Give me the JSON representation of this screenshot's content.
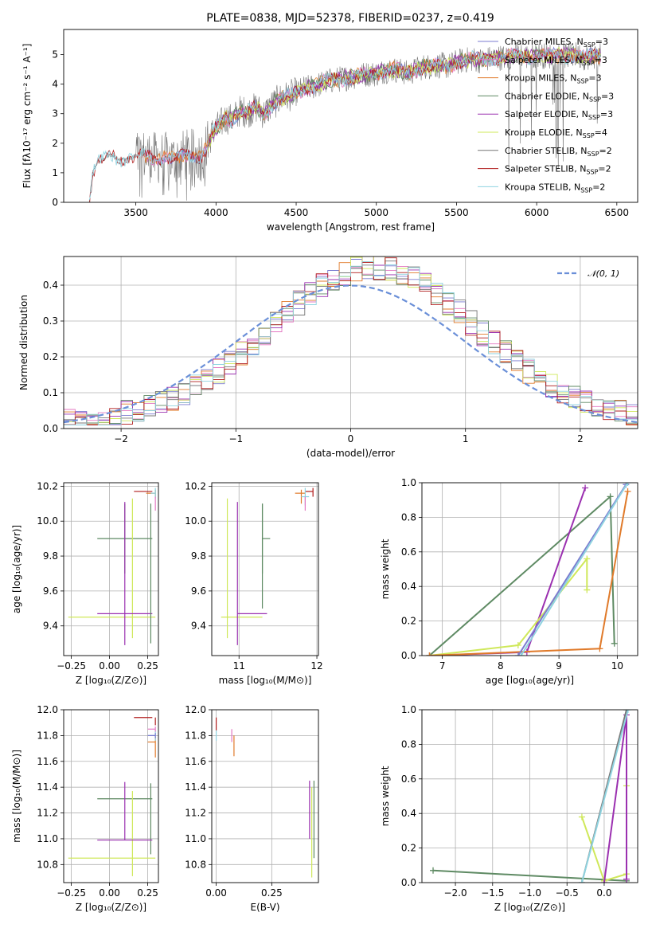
{
  "palette": {
    "Chabrier MILES": "#7b7bd0",
    "Salpeter MILES": "#e377c2",
    "Kroupa MILES": "#e07a2a",
    "Chabrier ELODIE": "#5e8a63",
    "Salpeter ELODIE": "#9b30b0",
    "Kroupa ELODIE": "#cfe85a",
    "Chabrier STELIB": "#777777",
    "Salpeter STELIB": "#b01c1c",
    "Kroupa STELIB": "#8fd3e0"
  },
  "chart_data": [
    {
      "id": "spectrum",
      "type": "line",
      "title": "PLATE=0838, MJD=52378, FIBERID=0237, z=0.419",
      "xlabel": "wavelength [Angstrom, rest frame]",
      "ylabel": "Flux [fλ10⁻¹⁷ erg cm⁻² s⁻¹ A⁻¹]",
      "xlim": [
        3050,
        6630
      ],
      "ylim": [
        0,
        5.85
      ],
      "xticks": [
        3500,
        4000,
        4500,
        5000,
        5500,
        6000,
        6500
      ],
      "yticks": [
        0,
        1,
        2,
        3,
        4,
        5
      ],
      "legend_position": "top-right",
      "legend": [
        {
          "name": "Chabrier MILES",
          "label": "Chabrier MILES, N",
          "sub": "SSP",
          "n": "=3"
        },
        {
          "name": "Salpeter MILES",
          "label": "Salpeter MILES, N",
          "sub": "SSP",
          "n": "=3"
        },
        {
          "name": "Kroupa MILES",
          "label": "Kroupa MILES, N",
          "sub": "SSP",
          "n": "=3"
        },
        {
          "name": "Chabrier ELODIE",
          "label": "Chabrier ELODIE, N",
          "sub": "SSP",
          "n": "=3"
        },
        {
          "name": "Salpeter ELODIE",
          "label": "Salpeter ELODIE, N",
          "sub": "SSP",
          "n": "=3"
        },
        {
          "name": "Kroupa ELODIE",
          "label": "Kroupa ELODIE, N",
          "sub": "SSP",
          "n": "=4"
        },
        {
          "name": "Chabrier STELIB",
          "label": "Chabrier STELIB, N",
          "sub": "SSP",
          "n": "=2"
        },
        {
          "name": "Salpeter STELIB",
          "label": "Salpeter STELIB, N",
          "sub": "SSP",
          "n": "=2"
        },
        {
          "name": "Kroupa STELIB",
          "label": "Kroupa STELIB, N",
          "sub": "SSP",
          "n": "=2"
        }
      ],
      "continuum": {
        "x": [
          3210,
          3230,
          3260,
          3290,
          3320,
          3350,
          3380,
          3420,
          3460,
          3500,
          3540,
          3580,
          3620,
          3660,
          3700,
          3740,
          3780,
          3820,
          3860,
          3900,
          3940,
          3980,
          4020,
          4060,
          4100,
          4150,
          4200,
          4250,
          4300,
          4350,
          4400,
          4450,
          4500,
          4550,
          4600,
          4650,
          4700,
          4750,
          4800,
          4850,
          4900,
          4950,
          5000,
          5050,
          5100,
          5150,
          5200,
          5250,
          5300,
          5350,
          5400,
          5450,
          5500,
          5550,
          5600,
          5650,
          5700,
          5750,
          5800,
          5850,
          5900,
          5950,
          6000,
          6050,
          6100,
          6150,
          6200,
          6250,
          6300,
          6350,
          6400
        ],
        "y": [
          0.0,
          1.0,
          1.35,
          1.4,
          1.55,
          1.6,
          1.5,
          1.45,
          1.5,
          1.55,
          1.6,
          1.55,
          1.5,
          1.5,
          1.5,
          1.45,
          1.55,
          1.6,
          1.6,
          1.55,
          1.8,
          2.4,
          2.6,
          2.85,
          2.8,
          3.1,
          3.05,
          3.2,
          3.0,
          3.3,
          3.5,
          3.6,
          3.7,
          3.85,
          3.9,
          4.0,
          4.1,
          4.15,
          4.2,
          4.25,
          4.3,
          4.35,
          4.35,
          4.45,
          4.5,
          4.45,
          4.35,
          4.5,
          4.6,
          4.6,
          4.65,
          4.6,
          4.75,
          4.8,
          4.85,
          4.8,
          4.85,
          4.9,
          4.9,
          4.95,
          5.0,
          4.9,
          5.0,
          4.95,
          4.95,
          5.0,
          4.95,
          5.0,
          4.9,
          4.95,
          4.95
        ]
      }
    },
    {
      "id": "residuals",
      "type": "line",
      "xlabel": "(data-model)/error",
      "ylabel": "Normed distribution",
      "xlim": [
        -2.5,
        2.5
      ],
      "ylim": [
        0,
        0.48
      ],
      "xticks": [
        -2,
        -1,
        0,
        1,
        2
      ],
      "yticks": [
        0.0,
        0.1,
        0.2,
        0.3,
        0.4
      ],
      "grid": true,
      "legend_position": "top-right",
      "legend": [
        {
          "label": "𝒩(0, 1)",
          "style": "dashed",
          "color": "#6a8fd8"
        }
      ],
      "bin_width": 0.1
    },
    {
      "id": "age-vs-Z",
      "type": "scatter",
      "xlabel": "Z [log₁₀(Z/Z⊙)]",
      "ylabel": "age  [log₁₀(age/yr)]",
      "xlim": [
        -0.3,
        0.32
      ],
      "ylim": [
        9.23,
        10.22
      ],
      "xticks": [
        -0.25,
        0.0,
        0.25
      ],
      "yticks": [
        9.4,
        9.6,
        9.8,
        10.0,
        10.2
      ],
      "grid": true,
      "points": [
        {
          "model": "Chabrier ELODIE",
          "x": 0.1,
          "xerr": [
            0.18,
            0.18
          ],
          "y": 9.9,
          "yerr": [
            0.2,
            0.2
          ]
        },
        {
          "model": "Kroupa ELODIE",
          "x": 0.15,
          "xerr": [
            0.42,
            0.15
          ],
          "y": 9.45,
          "yerr": [
            0.12,
            0.68
          ]
        },
        {
          "model": "Salpeter ELODIE",
          "x": 0.1,
          "xerr": [
            0.18,
            0.18
          ],
          "y": 9.47,
          "yerr": [
            0.18,
            0.64
          ]
        },
        {
          "model": "Chabrier ELODIE",
          "x": 0.27,
          "xerr": [
            0.0,
            0.0
          ],
          "y": 9.8,
          "yerr": [
            0.5,
            0.3
          ]
        },
        {
          "model": "Salpeter STELIB",
          "x": 0.26,
          "xerr": [
            0.1,
            0.02
          ],
          "y": 10.17,
          "yerr": [
            0.0,
            0.0
          ]
        },
        {
          "model": "Kroupa MILES",
          "x": 0.3,
          "xerr": [
            0.06,
            0.0
          ],
          "y": 10.16,
          "yerr": [
            0.02,
            0.02
          ]
        },
        {
          "model": "Kroupa STELIB",
          "x": 0.3,
          "xerr": [
            0.03,
            0.0
          ],
          "y": 10.16,
          "yerr": [
            0.03,
            0.03
          ]
        },
        {
          "model": "Salpeter MILES",
          "x": 0.3,
          "xerr": [
            0.0,
            0.0
          ],
          "y": 10.1,
          "yerr": [
            0.04,
            0.04
          ]
        }
      ]
    },
    {
      "id": "age-vs-mass",
      "type": "scatter",
      "xlabel": "mass [log₁₀(M/M⊙)]",
      "xlim": [
        10.65,
        12.02
      ],
      "ylim": [
        9.23,
        10.22
      ],
      "xticks": [
        11,
        12
      ],
      "yticks": [
        9.4,
        9.6,
        9.8,
        10.0,
        10.2
      ],
      "grid": true,
      "points": [
        {
          "model": "Chabrier ELODIE",
          "x": 11.3,
          "xerr": [
            0.0,
            0.1
          ],
          "y": 9.9,
          "yerr": [
            0.2,
            0.2
          ]
        },
        {
          "model": "Chabrier ELODIE",
          "x": 11.3,
          "xerr": [
            0.0,
            0.0
          ],
          "y": 9.8,
          "yerr": [
            0.3,
            0.3
          ]
        },
        {
          "model": "Kroupa ELODIE",
          "x": 10.85,
          "xerr": [
            0.08,
            0.45
          ],
          "y": 9.45,
          "yerr": [
            0.12,
            0.68
          ]
        },
        {
          "model": "Salpeter ELODIE",
          "x": 10.98,
          "xerr": [
            0.0,
            0.38
          ],
          "y": 9.47,
          "yerr": [
            0.18,
            0.64
          ]
        },
        {
          "model": "Salpeter STELIB",
          "x": 11.95,
          "xerr": [
            0.1,
            0.0
          ],
          "y": 10.17,
          "yerr": [
            0.03,
            0.02
          ]
        },
        {
          "model": "Kroupa MILES",
          "x": 11.8,
          "xerr": [
            0.08,
            0.05
          ],
          "y": 10.16,
          "yerr": [
            0.06,
            0.02
          ]
        },
        {
          "model": "Kroupa STELIB",
          "x": 11.85,
          "xerr": [
            0.05,
            0.05
          ],
          "y": 10.14,
          "yerr": [
            0.05,
            0.05
          ]
        },
        {
          "model": "Salpeter MILES",
          "x": 11.85,
          "xerr": [
            0.0,
            0.0
          ],
          "y": 10.1,
          "yerr": [
            0.04,
            0.04
          ]
        }
      ]
    },
    {
      "id": "mass-weight-vs-age",
      "type": "line",
      "xlabel": "age  [log₁₀(age/yr)]",
      "ylabel": "mass weight",
      "xlim": [
        6.65,
        10.35
      ],
      "ylim": [
        0.0,
        1.0
      ],
      "xticks": [
        7,
        8,
        9,
        10
      ],
      "yticks": [
        0.0,
        0.2,
        0.4,
        0.6,
        0.8,
        1.0
      ],
      "grid": true,
      "series": [
        {
          "model": "Chabrier ELODIE",
          "x": [
            6.78,
            9.88,
            9.95
          ],
          "y": [
            0.0,
            0.92,
            0.07
          ]
        },
        {
          "model": "Salpeter ELODIE",
          "x": [
            6.78,
            8.45,
            9.45
          ],
          "y": [
            0.0,
            0.02,
            0.97
          ]
        },
        {
          "model": "Kroupa ELODIE",
          "x": [
            6.78,
            8.3,
            9.48,
            9.48
          ],
          "y": [
            0.0,
            0.06,
            0.56,
            0.38
          ]
        },
        {
          "model": "Kroupa MILES",
          "x": [
            6.78,
            9.7,
            10.18
          ],
          "y": [
            0.0,
            0.04,
            0.95
          ]
        },
        {
          "model": "Chabrier MILES",
          "x": [
            8.3,
            10.15
          ],
          "y": [
            0.0,
            0.99
          ]
        },
        {
          "model": "Kroupa STELIB",
          "x": [
            8.35,
            10.18
          ],
          "y": [
            0.0,
            1.0
          ]
        }
      ]
    },
    {
      "id": "mass-vs-Z",
      "type": "scatter",
      "xlabel": "Z [log₁₀(Z/Z⊙)]",
      "ylabel": "mass [log₁₀(M/M⊙)]",
      "xlim": [
        -0.3,
        0.32
      ],
      "ylim": [
        10.66,
        12.0
      ],
      "xticks": [
        -0.25,
        0.0,
        0.25
      ],
      "yticks": [
        10.8,
        11.0,
        11.2,
        11.4,
        11.6,
        11.8,
        12.0
      ],
      "grid": true,
      "points": [
        {
          "model": "Chabrier ELODIE",
          "x": 0.1,
          "xerr": [
            0.18,
            0.18
          ],
          "y": 11.31,
          "yerr": [
            0.0,
            0.0
          ]
        },
        {
          "model": "Chabrier ELODIE",
          "x": 0.27,
          "xerr": [
            0.0,
            0.0
          ],
          "y": 11.31,
          "yerr": [
            0.43,
            0.12
          ]
        },
        {
          "model": "Kroupa ELODIE",
          "x": 0.15,
          "xerr": [
            0.42,
            0.15
          ],
          "y": 10.85,
          "yerr": [
            0.14,
            0.52
          ]
        },
        {
          "model": "Salpeter ELODIE",
          "x": 0.1,
          "xerr": [
            0.18,
            0.18
          ],
          "y": 10.99,
          "yerr": [
            0.0,
            0.45
          ]
        },
        {
          "model": "Salpeter STELIB",
          "x": 0.26,
          "xerr": [
            0.1,
            0.02
          ],
          "y": 11.94,
          "yerr": [
            0.0,
            0.0
          ]
        },
        {
          "model": "Salpeter STELIB",
          "x": 0.3,
          "xerr": [
            0.0,
            0.0
          ],
          "y": 11.94,
          "yerr": [
            0.06,
            0.0
          ]
        },
        {
          "model": "Kroupa MILES",
          "x": 0.3,
          "xerr": [
            0.05,
            0.0
          ],
          "y": 11.75,
          "yerr": [
            0.12,
            0.04
          ]
        },
        {
          "model": "Kroupa STELIB",
          "x": 0.3,
          "xerr": [
            0.05,
            0.0
          ],
          "y": 11.8,
          "yerr": [
            0.04,
            0.04
          ]
        },
        {
          "model": "Salpeter MILES",
          "x": 0.3,
          "xerr": [
            0.05,
            0.0
          ],
          "y": 11.85,
          "yerr": [
            0.02,
            0.02
          ]
        },
        {
          "model": "Chabrier MILES",
          "x": 0.3,
          "xerr": [
            0.05,
            0.0
          ],
          "y": 11.8,
          "yerr": [
            0.02,
            0.02
          ]
        }
      ]
    },
    {
      "id": "mass-vs-EBV",
      "type": "scatter",
      "xlabel": "E(B-V)",
      "xlim": [
        -0.02,
        0.46
      ],
      "ylim": [
        10.66,
        12.0
      ],
      "xticks": [
        0.0,
        0.25
      ],
      "yticks": [
        10.8,
        11.0,
        11.2,
        11.4,
        11.6,
        11.8,
        12.0
      ],
      "grid": true,
      "points": [
        {
          "model": "Salpeter STELIB",
          "x": 0.0,
          "y": 11.9,
          "yerr": [
            0.06,
            0.04
          ]
        },
        {
          "model": "Kroupa STELIB",
          "x": 0.0,
          "y": 11.8,
          "yerr": [
            0.04,
            0.04
          ]
        },
        {
          "model": "Salpeter MILES",
          "x": 0.07,
          "y": 11.8,
          "yerr": [
            0.05,
            0.05
          ]
        },
        {
          "model": "Kroupa MILES",
          "x": 0.08,
          "y": 11.72,
          "yerr": [
            0.08,
            0.08
          ]
        },
        {
          "model": "Salpeter ELODIE",
          "x": 0.42,
          "y": 11.2,
          "yerr": [
            0.2,
            0.25
          ]
        },
        {
          "model": "Kroupa ELODIE",
          "x": 0.43,
          "y": 11.05,
          "yerr": [
            0.35,
            0.35
          ]
        },
        {
          "model": "Chabrier ELODIE",
          "x": 0.44,
          "y": 11.15,
          "yerr": [
            0.3,
            0.3
          ]
        }
      ]
    },
    {
      "id": "mass-weight-vs-Z",
      "type": "line",
      "xlabel": "Z [log₁₀(Z/Z⊙)]",
      "ylabel": "mass weight",
      "xlim": [
        -2.45,
        0.45
      ],
      "ylim": [
        0.0,
        1.0
      ],
      "xticks": [
        -2.0,
        -1.5,
        -1.0,
        -0.5,
        0.0
      ],
      "yticks": [
        0.0,
        0.2,
        0.4,
        0.6,
        0.8,
        1.0
      ],
      "grid": true,
      "series": [
        {
          "model": "Chabrier ELODIE",
          "x": [
            -2.3,
            0.3
          ],
          "y": [
            0.07,
            0.01
          ]
        },
        {
          "model": "Kroupa ELODIE",
          "x": [
            -0.3,
            0.0,
            0.3,
            0.3
          ],
          "y": [
            0.38,
            0.01,
            0.05,
            0.56
          ]
        },
        {
          "model": "Salpeter ELODIE",
          "x": [
            0.0,
            0.3,
            0.3
          ],
          "y": [
            0.0,
            0.97,
            0.02
          ]
        },
        {
          "model": "Chabrier STELIB",
          "x": [
            -0.3,
            0.3
          ],
          "y": [
            0.0,
            1.0
          ]
        },
        {
          "model": "Kroupa STELIB",
          "x": [
            -0.3,
            0.32
          ],
          "y": [
            0.0,
            1.0
          ]
        }
      ]
    }
  ]
}
